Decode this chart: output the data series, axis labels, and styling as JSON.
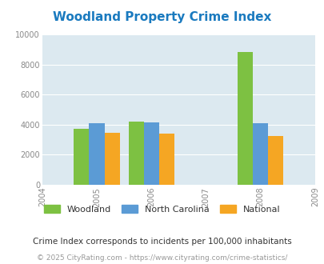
{
  "title": "Woodland Property Crime Index",
  "title_color": "#1a7abf",
  "years": [
    2004,
    2005,
    2006,
    2007,
    2008,
    2009
  ],
  "bar_years": [
    2005,
    2006,
    2008
  ],
  "woodland_values": [
    3700,
    4200,
    8850
  ],
  "nc_values": [
    4100,
    4150,
    4070
  ],
  "national_values": [
    3450,
    3380,
    3230
  ],
  "woodland_color": "#7dc142",
  "nc_color": "#5b9bd5",
  "national_color": "#f5a623",
  "ylim": [
    0,
    10000
  ],
  "yticks": [
    0,
    2000,
    4000,
    6000,
    8000,
    10000
  ],
  "bg_color": "#dce9f0",
  "legend_labels": [
    "Woodland",
    "North Carolina",
    "National"
  ],
  "footnote1": "Crime Index corresponds to incidents per 100,000 inhabitants",
  "footnote2": "© 2025 CityRating.com - https://www.cityrating.com/crime-statistics/",
  "bar_width": 0.28
}
